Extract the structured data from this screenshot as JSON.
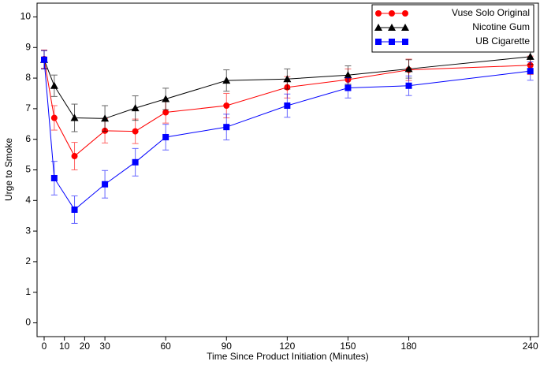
{
  "chart_data": {
    "type": "line",
    "x_label": "Time Since Product Initiation (Minutes)",
    "y_label": "Urge to Smoke",
    "x": [
      0,
      5,
      15,
      30,
      45,
      60,
      90,
      120,
      150,
      180,
      240
    ],
    "series": [
      {
        "name": "Vuse Solo Original",
        "color": "#ff0000",
        "marker": "circle",
        "values": [
          8.62,
          6.7,
          5.45,
          6.28,
          6.26,
          6.88,
          7.1,
          7.7,
          7.95,
          8.27,
          8.42
        ],
        "errors": [
          0.3,
          0.4,
          0.45,
          0.4,
          0.4,
          0.35,
          0.4,
          0.35,
          0.35,
          0.35,
          0.3
        ]
      },
      {
        "name": "Nicotine Gum",
        "color": "#000000",
        "marker": "triangle",
        "values": [
          8.6,
          7.75,
          6.7,
          6.68,
          7.02,
          7.32,
          7.92,
          7.97,
          8.1,
          8.3,
          8.7
        ],
        "errors": [
          0.3,
          0.35,
          0.45,
          0.42,
          0.4,
          0.35,
          0.35,
          0.33,
          0.3,
          0.3,
          0.25
        ]
      },
      {
        "name": "UB Cigarette",
        "color": "#0000ff",
        "marker": "square",
        "values": [
          8.6,
          4.73,
          3.7,
          4.53,
          5.25,
          6.07,
          6.4,
          7.1,
          7.68,
          7.75,
          8.23
        ],
        "errors": [
          0.3,
          0.55,
          0.45,
          0.45,
          0.45,
          0.42,
          0.42,
          0.38,
          0.33,
          0.32,
          0.3
        ]
      }
    ],
    "xlim": [
      -3.5,
      244
    ],
    "xticks": [
      0,
      10,
      20,
      30,
      60,
      90,
      120,
      150,
      180,
      240
    ],
    "ylim": [
      -0.45,
      10.45
    ],
    "yticks": [
      0,
      1,
      2,
      3,
      4,
      5,
      6,
      7,
      8,
      9,
      10
    ],
    "legend": "upper right"
  }
}
